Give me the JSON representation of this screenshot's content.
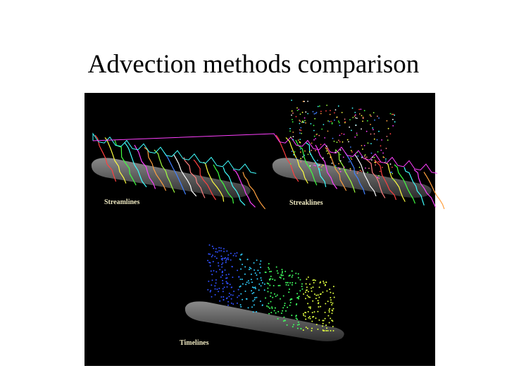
{
  "title": "Advection methods comparison",
  "panels": [
    {
      "label": "Streamlines"
    },
    {
      "label": "Streaklines"
    },
    {
      "label": "Timelines"
    }
  ]
}
